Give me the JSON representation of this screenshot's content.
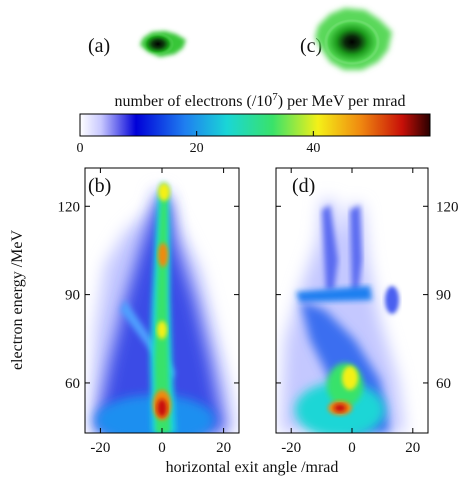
{
  "panels": [
    {
      "id": "a",
      "label": "(a)"
    },
    {
      "id": "c",
      "label": "(c)"
    },
    {
      "id": "b",
      "label": "(b)"
    },
    {
      "id": "d",
      "label": "(d)"
    }
  ],
  "colorbar": {
    "title_prefix": "number of electrons (/10",
    "title_exponent": "7",
    "title_suffix": ") per MeV per mrad",
    "ticks": [
      "0",
      "20",
      "40"
    ],
    "tick_values": [
      0,
      20,
      40
    ],
    "range": [
      0,
      60
    ],
    "colormap": [
      "#ffffff",
      "#0000d8",
      "#1f7ff0",
      "#1ad6d6",
      "#39e26a",
      "#f4f018",
      "#f08a10",
      "#c81008",
      "#2a0000"
    ]
  },
  "axes": {
    "ylabel": "electron energy /MeV",
    "xlabel": "horizontal exit angle /mrad",
    "left_y_ticks": [
      "60",
      "90",
      "120"
    ],
    "right_y_ticks": [
      "60",
      "90",
      "120"
    ],
    "y_tick_values": [
      60,
      90,
      120
    ],
    "x_ticks_b": [
      "-20",
      "0",
      "20"
    ],
    "x_ticks_d": [
      "-20",
      "0",
      "20"
    ],
    "x_tick_values": [
      -20,
      0,
      20
    ],
    "ylim": [
      43,
      133
    ],
    "xlim": [
      -25,
      25
    ]
  },
  "colors": {
    "beam_green": "#1aa51a",
    "beam_core": "#0a1a0a"
  }
}
